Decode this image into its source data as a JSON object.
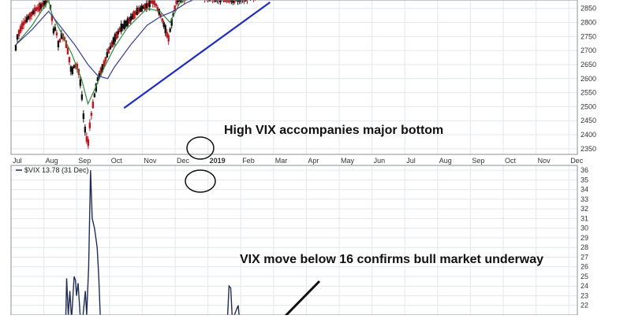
{
  "chart_data": [
    {
      "type": "candlestick",
      "instrument": "S&P 500",
      "x_tick_labels": [
        "Jul",
        "Aug",
        "Sep",
        "Oct",
        "Nov",
        "Dec",
        "2019",
        "Feb",
        "Mar",
        "Apr",
        "May",
        "Jun",
        "Jul",
        "Aug",
        "Sep",
        "Oct",
        "Nov",
        "Dec"
      ],
      "y_tick_labels": [
        "2350",
        "2400",
        "2450",
        "2500",
        "2550",
        "2600",
        "2650",
        "2700",
        "2750",
        "2800",
        "2850"
      ],
      "ylim": [
        2330,
        2880
      ],
      "close_path": [
        [
          0,
          2710
        ],
        [
          0.05,
          2750
        ],
        [
          0.2,
          2790
        ],
        [
          0.4,
          2820
        ],
        [
          0.6,
          2845
        ],
        [
          0.8,
          2860
        ],
        [
          1.0,
          2890
        ],
        [
          1.08,
          2840
        ],
        [
          1.15,
          2770
        ],
        [
          1.22,
          2780
        ],
        [
          1.3,
          2720
        ],
        [
          1.4,
          2755
        ],
        [
          1.5,
          2740
        ],
        [
          1.6,
          2690
        ],
        [
          1.7,
          2620
        ],
        [
          1.8,
          2650
        ],
        [
          1.9,
          2640
        ],
        [
          2.0,
          2560
        ],
        [
          2.05,
          2480
        ],
        [
          2.12,
          2410
        ],
        [
          2.2,
          2360
        ],
        [
          2.24,
          2420
        ],
        [
          2.3,
          2470
        ],
        [
          2.4,
          2540
        ],
        [
          2.5,
          2600
        ],
        [
          2.65,
          2640
        ],
        [
          2.8,
          2690
        ],
        [
          3.0,
          2740
        ],
        [
          3.2,
          2780
        ],
        [
          3.4,
          2800
        ],
        [
          3.7,
          2840
        ],
        [
          4.0,
          2860
        ],
        [
          4.2,
          2880
        ],
        [
          4.4,
          2830
        ],
        [
          4.55,
          2780
        ],
        [
          4.65,
          2740
        ],
        [
          4.75,
          2800
        ],
        [
          4.9,
          2880
        ],
        [
          5.4,
          2900
        ],
        [
          6.0,
          2890
        ],
        [
          6.5,
          2880
        ],
        [
          7.0,
          2890
        ],
        [
          7.4,
          2900
        ]
      ],
      "ma_short": [
        [
          0,
          2720
        ],
        [
          0.5,
          2790
        ],
        [
          1.0,
          2880
        ],
        [
          1.1,
          2830
        ],
        [
          1.4,
          2760
        ],
        [
          1.7,
          2690
        ],
        [
          2.0,
          2600
        ],
        [
          2.2,
          2510
        ],
        [
          2.4,
          2560
        ],
        [
          2.7,
          2640
        ],
        [
          3.0,
          2710
        ],
        [
          3.4,
          2780
        ],
        [
          4.0,
          2850
        ],
        [
          4.4,
          2840
        ],
        [
          4.7,
          2800
        ],
        [
          5.0,
          2870
        ],
        [
          5.5,
          2900
        ],
        [
          6.0,
          2900
        ]
      ],
      "ma_long": [
        [
          0,
          2720
        ],
        [
          0.5,
          2775
        ],
        [
          1.0,
          2840
        ],
        [
          1.4,
          2780
        ],
        [
          1.8,
          2720
        ],
        [
          2.2,
          2650
        ],
        [
          2.5,
          2610
        ],
        [
          2.8,
          2600
        ],
        [
          3.0,
          2640
        ],
        [
          3.5,
          2720
        ],
        [
          4.0,
          2790
        ],
        [
          4.4,
          2820
        ],
        [
          4.8,
          2840
        ],
        [
          5.2,
          2870
        ],
        [
          5.6,
          2890
        ],
        [
          6.0,
          2900
        ]
      ],
      "trendline": [
        [
          3.3,
          2495
        ],
        [
          7.75,
          2872
        ]
      ],
      "annotation": "High VIX accompanies major bottom"
    },
    {
      "type": "line",
      "instrument": "$VIX",
      "legend": "$VIX 13.78 (31 Dec)",
      "y_tick_labels": [
        "22",
        "23",
        "24",
        "25",
        "26",
        "27",
        "28",
        "29",
        "30",
        "31",
        "32",
        "33",
        "34",
        "35",
        "36"
      ],
      "ylim": [
        21,
        36.5
      ],
      "series": [
        {
          "x": 1.52,
          "y": 20.0
        },
        {
          "x": 1.55,
          "y": 24.8
        },
        {
          "x": 1.6,
          "y": 21.0
        },
        {
          "x": 1.65,
          "y": 23.5
        },
        {
          "x": 1.7,
          "y": 20.5
        },
        {
          "x": 1.78,
          "y": 25.0
        },
        {
          "x": 1.82,
          "y": 24.6
        },
        {
          "x": 1.85,
          "y": 23.0
        },
        {
          "x": 1.9,
          "y": 24.3
        },
        {
          "x": 1.97,
          "y": 20.5
        },
        {
          "x": 2.05,
          "y": 21.0
        },
        {
          "x": 2.12,
          "y": 23.5
        },
        {
          "x": 2.16,
          "y": 21.0
        },
        {
          "x": 2.22,
          "y": 26.0
        },
        {
          "x": 2.28,
          "y": 36.0
        },
        {
          "x": 2.33,
          "y": 31.0
        },
        {
          "x": 2.4,
          "y": 30.0
        },
        {
          "x": 2.48,
          "y": 28.0
        },
        {
          "x": 2.53,
          "y": 25.0
        },
        {
          "x": 2.58,
          "y": 20.5
        },
        {
          "x": 6.45,
          "y": 20.5
        },
        {
          "x": 6.5,
          "y": 24.0
        },
        {
          "x": 6.55,
          "y": 23.8
        },
        {
          "x": 6.6,
          "y": 20.5
        },
        {
          "x": 6.78,
          "y": 22.0
        },
        {
          "x": 6.82,
          "y": 20.5
        }
      ],
      "annotation": "VIX move below 16 confirms bull market underway"
    }
  ]
}
